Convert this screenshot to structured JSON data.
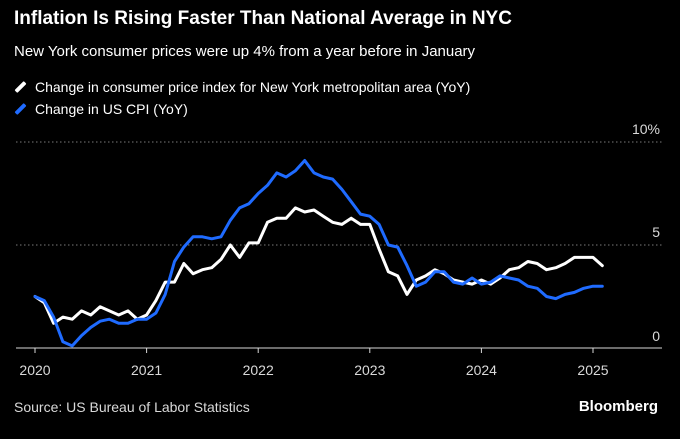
{
  "title": "Inflation Is Rising Faster Than National Average in NYC",
  "subtitle": "New York consumer prices were up 4% from a year before in January",
  "source": "Source: US Bureau of Labor Statistics",
  "brand": "Bloomberg",
  "chart_data": {
    "type": "line",
    "title": "Inflation Is Rising Faster Than National Average in NYC",
    "subtitle": "New York consumer prices were up 4% from a year before in January",
    "xlim": [
      2020,
      2025.75
    ],
    "ylim": [
      0,
      10
    ],
    "x_ticks": [
      2020,
      2021,
      2022,
      2023,
      2024,
      2025
    ],
    "x_tick_labels": [
      "2020",
      "2021",
      "2022",
      "2023",
      "2024",
      "2025"
    ],
    "y_ticks": [
      0,
      5,
      10
    ],
    "y_tick_labels": [
      "0",
      "5",
      "10%"
    ],
    "grid": "horizontal dotted",
    "legend_position": "top-left",
    "series": [
      {
        "name": "Change in consumer price index for New York metropolitan area (YoY)",
        "color": "#ffffff",
        "x": [
          2020.0,
          2020.083,
          2020.167,
          2020.25,
          2020.333,
          2020.417,
          2020.5,
          2020.583,
          2020.667,
          2020.75,
          2020.833,
          2020.917,
          2021.0,
          2021.083,
          2021.167,
          2021.25,
          2021.333,
          2021.417,
          2021.5,
          2021.583,
          2021.667,
          2021.75,
          2021.833,
          2021.917,
          2022.0,
          2022.083,
          2022.167,
          2022.25,
          2022.333,
          2022.417,
          2022.5,
          2022.583,
          2022.667,
          2022.75,
          2022.833,
          2022.917,
          2023.0,
          2023.083,
          2023.167,
          2023.25,
          2023.333,
          2023.417,
          2023.5,
          2023.583,
          2023.667,
          2023.75,
          2023.833,
          2023.917,
          2024.0,
          2024.083,
          2024.167,
          2024.25,
          2024.333,
          2024.417,
          2024.5,
          2024.583,
          2024.667,
          2024.75,
          2024.833,
          2024.917,
          2025.0,
          2025.083
        ],
        "values": [
          2.5,
          2.2,
          1.2,
          1.5,
          1.4,
          1.8,
          1.6,
          2.0,
          1.8,
          1.6,
          1.8,
          1.4,
          1.6,
          2.3,
          3.2,
          3.2,
          4.1,
          3.6,
          3.8,
          3.9,
          4.3,
          5.0,
          4.4,
          5.1,
          5.1,
          6.1,
          6.3,
          6.3,
          6.8,
          6.6,
          6.7,
          6.4,
          6.1,
          6.0,
          6.3,
          6.0,
          6.0,
          4.8,
          3.7,
          3.5,
          2.6,
          3.3,
          3.5,
          3.8,
          3.6,
          3.3,
          3.2,
          3.1,
          3.3,
          3.1,
          3.4,
          3.8,
          3.9,
          4.2,
          4.1,
          3.8,
          3.9,
          4.1,
          4.4,
          4.4,
          4.4,
          4.0
        ]
      },
      {
        "name": "Change in US CPI (YoY)",
        "color": "#1f6bff",
        "x": [
          2020.0,
          2020.083,
          2020.167,
          2020.25,
          2020.333,
          2020.417,
          2020.5,
          2020.583,
          2020.667,
          2020.75,
          2020.833,
          2020.917,
          2021.0,
          2021.083,
          2021.167,
          2021.25,
          2021.333,
          2021.417,
          2021.5,
          2021.583,
          2021.667,
          2021.75,
          2021.833,
          2021.917,
          2022.0,
          2022.083,
          2022.167,
          2022.25,
          2022.333,
          2022.417,
          2022.5,
          2022.583,
          2022.667,
          2022.75,
          2022.833,
          2022.917,
          2023.0,
          2023.083,
          2023.167,
          2023.25,
          2023.333,
          2023.417,
          2023.5,
          2023.583,
          2023.667,
          2023.75,
          2023.833,
          2023.917,
          2024.0,
          2024.083,
          2024.167,
          2024.25,
          2024.333,
          2024.417,
          2024.5,
          2024.583,
          2024.667,
          2024.75,
          2024.833,
          2024.917,
          2025.0,
          2025.083
        ],
        "values": [
          2.5,
          2.3,
          1.5,
          0.3,
          0.1,
          0.6,
          1.0,
          1.3,
          1.4,
          1.2,
          1.2,
          1.4,
          1.4,
          1.7,
          2.6,
          4.2,
          4.9,
          5.4,
          5.4,
          5.3,
          5.4,
          6.2,
          6.8,
          7.0,
          7.5,
          7.9,
          8.5,
          8.3,
          8.6,
          9.1,
          8.5,
          8.3,
          8.2,
          7.7,
          7.1,
          6.5,
          6.4,
          6.0,
          5.0,
          4.9,
          4.0,
          3.0,
          3.2,
          3.7,
          3.7,
          3.2,
          3.1,
          3.4,
          3.1,
          3.2,
          3.5,
          3.4,
          3.3,
          3.0,
          2.9,
          2.5,
          2.4,
          2.6,
          2.7,
          2.9,
          3.0,
          3.0
        ]
      }
    ]
  }
}
